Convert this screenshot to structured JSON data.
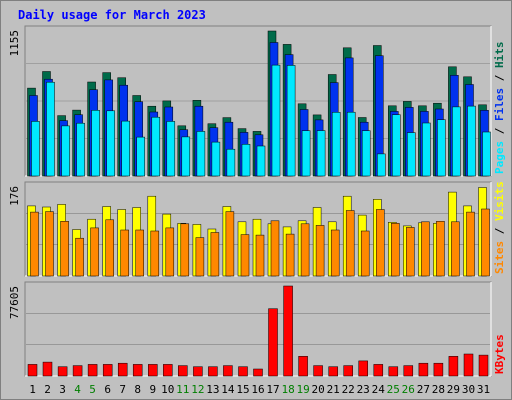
{
  "chart_data": [
    {
      "type": "bar",
      "title": "Daily usage for March 2023",
      "panel": "pages-files-hits",
      "ylabel_parts": [
        "Pages",
        "Files",
        "Hits"
      ],
      "ymax_label": "1155",
      "ylim": [
        0,
        1155
      ],
      "categories": [
        "1",
        "2",
        "3",
        "4",
        "5",
        "6",
        "7",
        "8",
        "9",
        "10",
        "11",
        "12",
        "13",
        "14",
        "15",
        "16",
        "17",
        "18",
        "19",
        "20",
        "21",
        "22",
        "23",
        "24",
        "25",
        "26",
        "27",
        "28",
        "29",
        "30",
        "31"
      ],
      "weekend_days": [
        "4",
        "5",
        "11",
        "12",
        "18",
        "19",
        "25",
        "26"
      ],
      "series": [
        {
          "name": "Hits",
          "color": "#006b4a",
          "values": [
            695,
            827,
            478,
            521,
            744,
            818,
            778,
            637,
            552,
            594,
            397,
            599,
            414,
            462,
            375,
            353,
            1147,
            1041,
            571,
            483,
            803,
            1014,
            463,
            1032,
            555,
            590,
            555,
            576,
            864,
            785,
            563
          ]
        },
        {
          "name": "Files",
          "color": "#0032ef",
          "values": [
            637,
            766,
            438,
            485,
            683,
            760,
            718,
            588,
            506,
            546,
            366,
            552,
            382,
            426,
            345,
            326,
            1056,
            960,
            526,
            444,
            739,
            934,
            426,
            952,
            511,
            543,
            511,
            530,
            797,
            724,
            520
          ]
        },
        {
          "name": "Pages",
          "color": "#00e8ff",
          "values": [
            432,
            742,
            396,
            418,
            520,
            516,
            434,
            308,
            465,
            432,
            309,
            353,
            268,
            212,
            251,
            237,
            877,
            875,
            358,
            359,
            504,
            505,
            358,
            175,
            485,
            343,
            419,
            445,
            547,
            553,
            348
          ]
        }
      ]
    },
    {
      "type": "bar",
      "panel": "sites-visits",
      "ylabel_parts": [
        "Sites",
        "Visits"
      ],
      "ymax_label": "176",
      "ylim": [
        0,
        176
      ],
      "categories": [
        "1",
        "2",
        "3",
        "4",
        "5",
        "6",
        "7",
        "8",
        "9",
        "10",
        "11",
        "12",
        "13",
        "14",
        "15",
        "16",
        "17",
        "18",
        "19",
        "20",
        "21",
        "22",
        "23",
        "24",
        "25",
        "26",
        "27",
        "28",
        "29",
        "30",
        "31"
      ],
      "series": [
        {
          "name": "Visits",
          "color": "#ffff00",
          "values": [
            137,
            135,
            140,
            91,
            111,
            136,
            130,
            134,
            156,
            121,
            103,
            101,
            92,
            136,
            106,
            111,
            102,
            96,
            108,
            134,
            106,
            156,
            119,
            150,
            105,
            98,
            104,
            103,
            164,
            137,
            173
          ]
        },
        {
          "name": "Sites",
          "color": "#ff8800",
          "values": [
            125,
            126,
            107,
            74,
            94,
            110,
            90,
            90,
            88,
            94,
            102,
            75,
            85,
            126,
            81,
            80,
            108,
            82,
            102,
            99,
            90,
            128,
            88,
            130,
            103,
            95,
            106,
            107,
            106,
            125,
            131
          ]
        }
      ]
    },
    {
      "type": "bar",
      "panel": "kbytes",
      "ylabel_parts": [
        "KBytes"
      ],
      "ymax_label": "77605",
      "ylim": [
        0,
        77605
      ],
      "categories": [
        "1",
        "2",
        "3",
        "4",
        "5",
        "6",
        "7",
        "8",
        "9",
        "10",
        "11",
        "12",
        "13",
        "14",
        "15",
        "16",
        "17",
        "18",
        "19",
        "20",
        "21",
        "22",
        "23",
        "24",
        "25",
        "26",
        "27",
        "28",
        "29",
        "30",
        "31"
      ],
      "series": [
        {
          "name": "KBytes",
          "color": "#ff0000",
          "values": [
            10000,
            12000,
            8000,
            9000,
            10000,
            10000,
            11000,
            10000,
            10000,
            10000,
            9000,
            8000,
            8000,
            9000,
            8000,
            6000,
            58000,
            77605,
            17000,
            9000,
            8000,
            9000,
            13000,
            10000,
            8000,
            9000,
            11000,
            11000,
            17000,
            19000,
            18000
          ]
        }
      ]
    }
  ],
  "colors": {
    "frame_bg": "#c0c0c0",
    "title": "#0000ff",
    "weekend_label": "#007f00",
    "weekday_label": "#000000",
    "grid": "#808080"
  }
}
